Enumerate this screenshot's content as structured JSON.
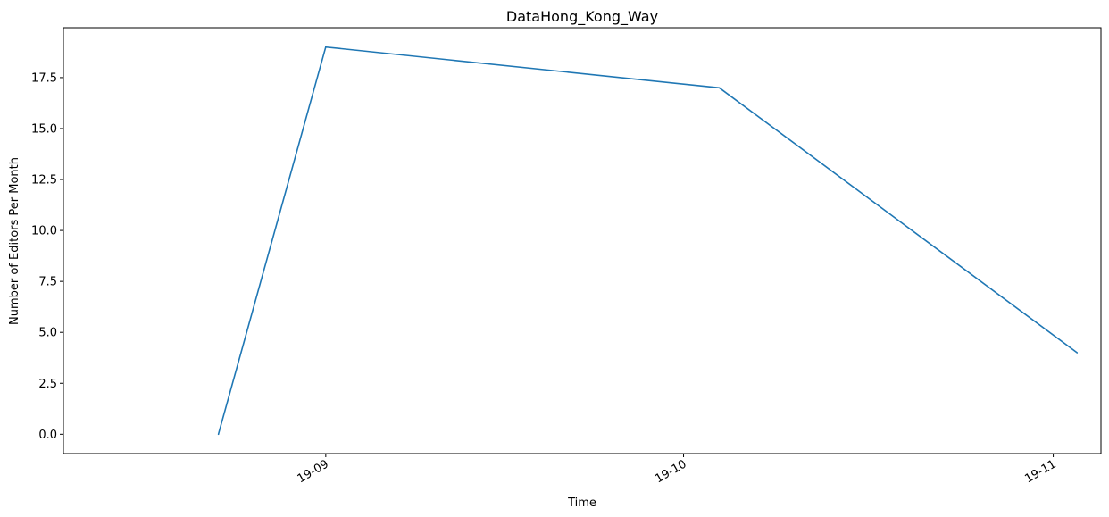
{
  "chart_data": {
    "type": "line",
    "title": "DataHong_Kong_Way",
    "xlabel": "Time",
    "ylabel": "Number of Editors Per Month",
    "x": [
      "2019-08-23",
      "2019-09-01",
      "2019-10-04",
      "2019-11-03"
    ],
    "x_range": [
      "2019-08-10",
      "2019-11-05"
    ],
    "x_ticks": [
      {
        "date": "2019-09-01",
        "label": "19-09"
      },
      {
        "date": "2019-10-01",
        "label": "19-10"
      },
      {
        "date": "2019-11-01",
        "label": "19-11"
      }
    ],
    "series": [
      {
        "values": [
          0,
          19,
          17,
          4
        ],
        "color": "#1f77b4"
      }
    ],
    "ylim": [
      -0.95,
      19.95
    ],
    "y_ticks": [
      0.0,
      2.5,
      5.0,
      7.5,
      10.0,
      12.5,
      15.0,
      17.5
    ],
    "y_tick_labels": [
      "0.0",
      "2.5",
      "5.0",
      "7.5",
      "10.0",
      "12.5",
      "15.0",
      "17.5"
    ],
    "grid": false,
    "legend": "none"
  }
}
